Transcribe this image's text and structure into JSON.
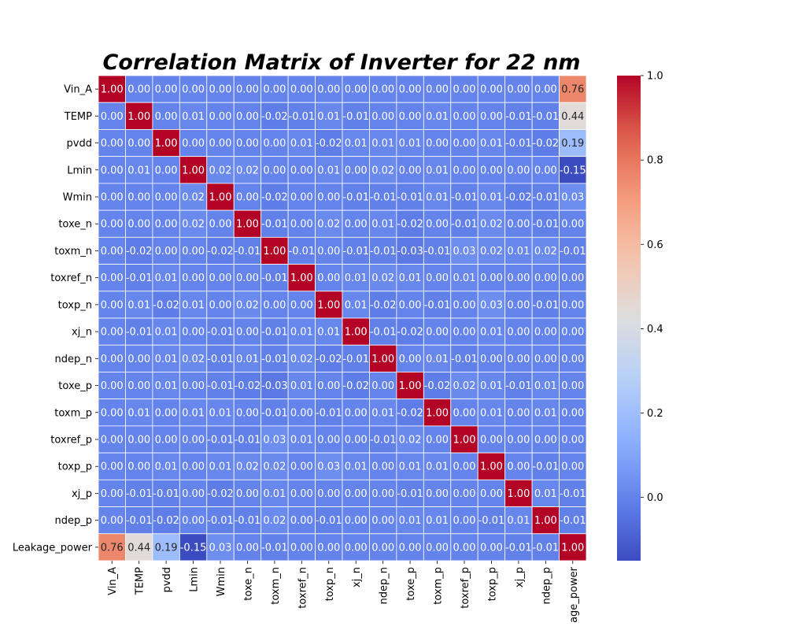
{
  "chart_data": {
    "type": "heatmap",
    "title": "Correlation Matrix of Inverter for 22 nm",
    "labels": [
      "Vin_A",
      "TEMP",
      "pvdd",
      "Lmin",
      "Wmin",
      "toxe_n",
      "toxm_n",
      "toxref_n",
      "toxp_n",
      "xj_n",
      "ndep_n",
      "toxe_p",
      "toxm_p",
      "toxref_p",
      "toxp_p",
      "xj_p",
      "ndep_p",
      "Leakage_power"
    ],
    "x_tick_labels": [
      "Vin_A",
      "TEMP",
      "pvdd",
      "Lmin",
      "Wmin",
      "toxe_n",
      "toxm_n",
      "toxref_n",
      "toxp_n",
      "xj_n",
      "ndep_n",
      "toxe_p",
      "toxm_p",
      "toxref_p",
      "toxp_p",
      "xj_p",
      "ndep_p",
      "age_power"
    ],
    "matrix": [
      [
        1.0,
        0.0,
        0.0,
        -0.0,
        -0.0,
        0.0,
        0.0,
        -0.0,
        -0.0,
        0.0,
        -0.0,
        -0.0,
        -0.0,
        0.0,
        0.0,
        -0.0,
        0.0,
        0.76
      ],
      [
        0.0,
        1.0,
        -0.0,
        0.01,
        -0.0,
        -0.0,
        -0.02,
        -0.01,
        0.01,
        -0.01,
        0.0,
        -0.0,
        0.01,
        -0.0,
        -0.0,
        -0.01,
        -0.01,
        0.44
      ],
      [
        0.0,
        -0.0,
        1.0,
        0.0,
        -0.0,
        0.0,
        -0.0,
        0.01,
        -0.02,
        0.01,
        0.01,
        0.01,
        0.0,
        0.0,
        0.01,
        -0.01,
        -0.02,
        0.19
      ],
      [
        -0.0,
        0.01,
        0.0,
        1.0,
        0.02,
        0.02,
        -0.0,
        0.0,
        0.01,
        -0.0,
        0.02,
        0.0,
        0.01,
        -0.0,
        0.0,
        -0.0,
        -0.0,
        -0.15
      ],
      [
        -0.0,
        -0.0,
        -0.0,
        0.02,
        1.0,
        -0.0,
        -0.02,
        0.0,
        0.0,
        -0.01,
        -0.01,
        -0.01,
        0.01,
        -0.01,
        0.01,
        -0.02,
        -0.01,
        0.03
      ],
      [
        0.0,
        -0.0,
        0.0,
        0.02,
        -0.0,
        1.0,
        -0.01,
        -0.0,
        0.02,
        -0.0,
        0.01,
        -0.02,
        0.0,
        -0.01,
        0.02,
        0.0,
        -0.01,
        -0.0
      ],
      [
        0.0,
        -0.02,
        -0.0,
        -0.0,
        -0.02,
        -0.01,
        1.0,
        -0.01,
        -0.0,
        -0.01,
        -0.01,
        -0.03,
        -0.01,
        0.03,
        0.02,
        0.01,
        0.02,
        -0.01
      ],
      [
        -0.0,
        -0.01,
        0.01,
        0.0,
        0.0,
        -0.0,
        -0.01,
        1.0,
        0.0,
        0.01,
        0.02,
        0.01,
        -0.0,
        0.01,
        0.0,
        0.0,
        -0.0,
        -0.0
      ],
      [
        -0.0,
        0.01,
        -0.02,
        0.01,
        0.0,
        0.02,
        -0.0,
        0.0,
        1.0,
        0.01,
        -0.02,
        0.0,
        -0.01,
        -0.0,
        0.03,
        -0.0,
        -0.01,
        0.0
      ],
      [
        0.0,
        -0.01,
        0.01,
        -0.0,
        -0.01,
        -0.0,
        -0.01,
        0.01,
        0.01,
        1.0,
        -0.01,
        -0.02,
        -0.0,
        -0.0,
        0.01,
        -0.0,
        -0.0,
        0.0
      ],
      [
        -0.0,
        0.0,
        0.01,
        0.02,
        -0.01,
        0.01,
        -0.01,
        0.02,
        -0.02,
        -0.01,
        1.0,
        0.0,
        0.01,
        -0.01,
        -0.0,
        -0.0,
        0.0,
        0.0
      ],
      [
        -0.0,
        -0.0,
        0.01,
        0.0,
        -0.01,
        -0.02,
        -0.03,
        0.01,
        0.0,
        -0.02,
        0.0,
        1.0,
        -0.02,
        0.02,
        0.01,
        -0.01,
        0.01,
        -0.0
      ],
      [
        -0.0,
        0.01,
        0.0,
        0.01,
        0.01,
        0.0,
        -0.01,
        -0.0,
        -0.01,
        -0.0,
        0.01,
        -0.02,
        1.0,
        -0.0,
        0.01,
        0.0,
        0.01,
        -0.0
      ],
      [
        0.0,
        -0.0,
        0.0,
        -0.0,
        -0.01,
        -0.01,
        0.03,
        0.01,
        -0.0,
        -0.0,
        -0.01,
        0.02,
        -0.0,
        1.0,
        -0.0,
        0.0,
        -0.0,
        -0.0
      ],
      [
        0.0,
        -0.0,
        0.01,
        0.0,
        0.01,
        0.02,
        0.02,
        0.0,
        0.03,
        0.01,
        -0.0,
        0.01,
        0.01,
        -0.0,
        1.0,
        0.0,
        -0.01,
        0.0
      ],
      [
        -0.0,
        -0.01,
        -0.01,
        -0.0,
        -0.02,
        0.0,
        0.01,
        0.0,
        -0.0,
        -0.0,
        -0.0,
        -0.01,
        0.0,
        0.0,
        0.0,
        1.0,
        0.01,
        -0.01
      ],
      [
        0.0,
        -0.01,
        -0.02,
        -0.0,
        -0.01,
        -0.01,
        0.02,
        -0.0,
        -0.01,
        -0.0,
        0.0,
        0.01,
        0.01,
        -0.0,
        -0.01,
        0.01,
        1.0,
        -0.01
      ],
      [
        0.76,
        0.44,
        0.19,
        -0.15,
        0.03,
        -0.0,
        -0.01,
        -0.0,
        0.0,
        0.0,
        0.0,
        -0.0,
        -0.0,
        -0.0,
        0.0,
        -0.01,
        -0.01,
        1.0
      ]
    ],
    "value_format": "2 decimals",
    "colormap": "coolwarm",
    "color_range": [
      -0.15,
      1.0
    ],
    "colorbar_ticks": [
      "0.0",
      "0.2",
      "0.4",
      "0.6",
      "0.8",
      "1.0"
    ],
    "colorbar_tick_values": [
      0.0,
      0.2,
      0.4,
      0.6,
      0.8,
      1.0
    ],
    "grid_lines": "white",
    "legend": "colorbar right"
  }
}
